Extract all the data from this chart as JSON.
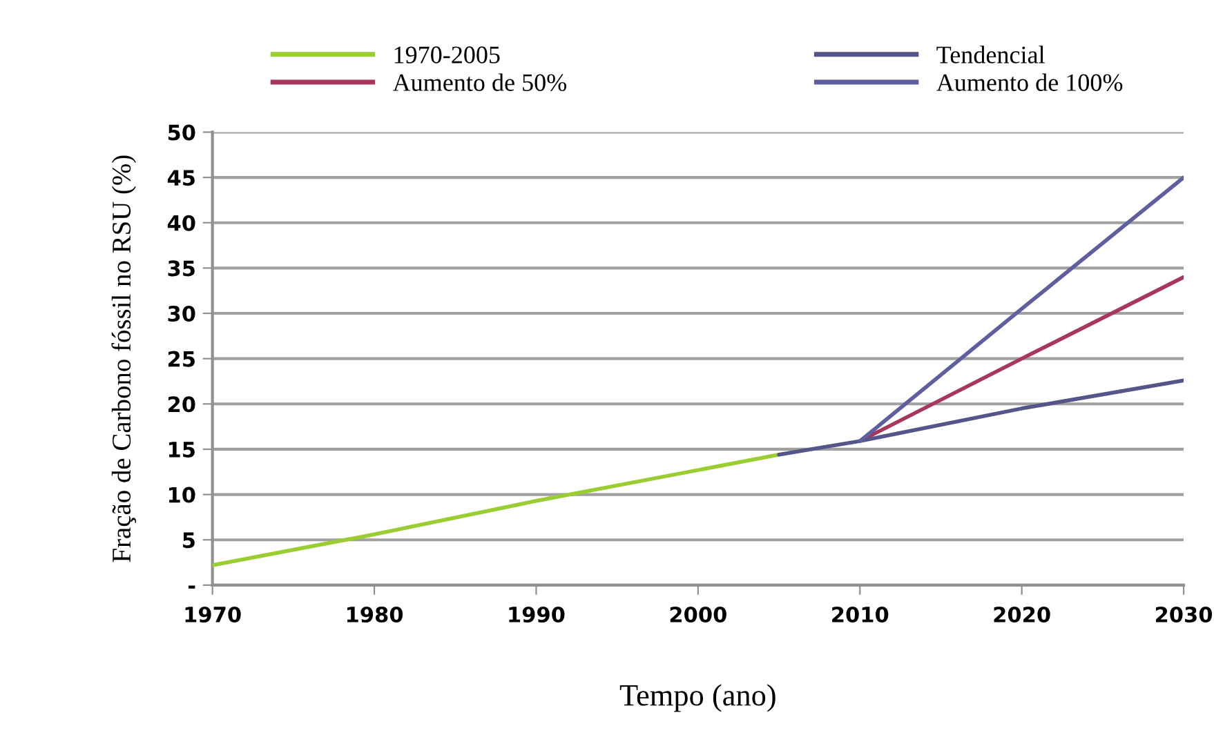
{
  "chart_data": {
    "type": "line",
    "xlabel": "Tempo (ano)",
    "ylabel": "Fração de Carbono fóssil no RSU (%)",
    "series": [
      {
        "name": "1970-2005",
        "color": "#9acd32",
        "x": [
          1970,
          1980,
          1990,
          2000,
          2005
        ],
        "values": [
          2.2,
          5.6,
          9.3,
          12.7,
          14.4
        ]
      },
      {
        "name": "Aumento de 50%",
        "color": "#a8385a",
        "x": [
          2010,
          2020,
          2030
        ],
        "values": [
          15.9,
          25,
          34
        ]
      },
      {
        "name": "Tendencial",
        "color": "#55558a",
        "x": [
          2005,
          2010,
          2020,
          2030
        ],
        "values": [
          14.4,
          15.9,
          19.5,
          22.6
        ]
      },
      {
        "name": "Aumento de 100%",
        "color": "#5f5fa0",
        "x": [
          2010,
          2020,
          2030
        ],
        "values": [
          15.9,
          30.5,
          45
        ]
      }
    ],
    "xlim": [
      1970,
      2030
    ],
    "xticks": [
      1970,
      1980,
      1990,
      2000,
      2010,
      2020,
      2030
    ],
    "ylim": [
      0,
      50
    ],
    "yticks": [
      {
        "value": 0,
        "label": "-"
      },
      5,
      10,
      15,
      20,
      25,
      30,
      35,
      40,
      45,
      50
    ],
    "grid": "y",
    "legend": "top",
    "marker": "none",
    "line_style": "solid"
  }
}
